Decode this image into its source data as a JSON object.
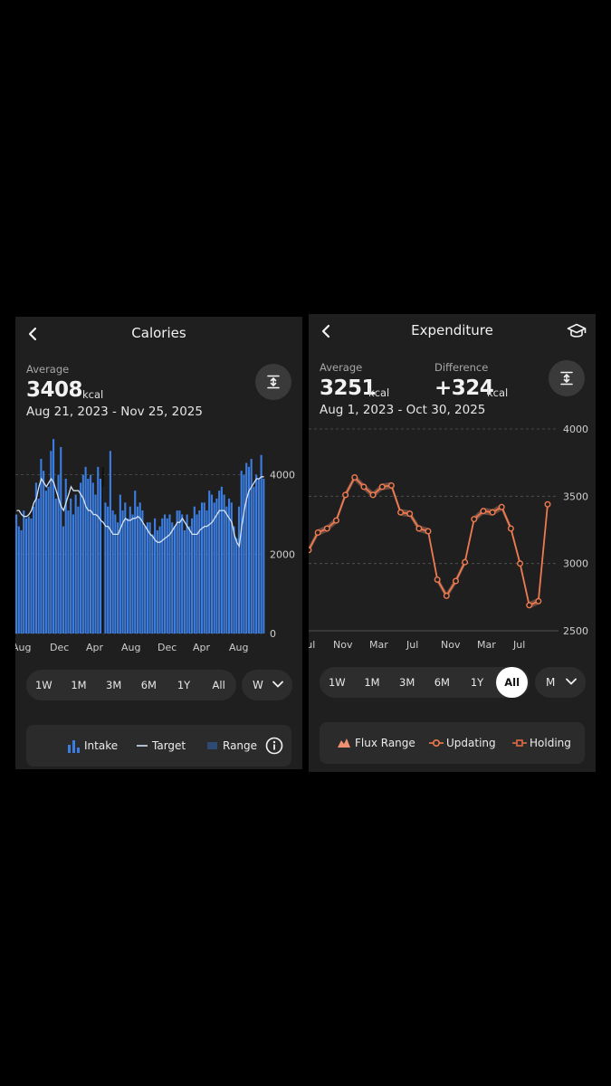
{
  "calories": {
    "title": "Calories",
    "average_label": "Average",
    "average_value": "3408",
    "unit": "kcal",
    "date_range": "Aug 21, 2023 - Nov 25, 2025",
    "ranges": [
      "1W",
      "1M",
      "3M",
      "6M",
      "1Y",
      "All"
    ],
    "dropdown_value": "W",
    "legend": {
      "intake": "Intake",
      "target": "Target",
      "range": "Range"
    },
    "icons": {
      "back": "back-arrow-icon",
      "expand": "expand-icon",
      "info": "info-icon"
    },
    "colors": {
      "bar": "#3b7de0",
      "target_line": "#d4e2f5",
      "range_dark": "#2d4a72"
    }
  },
  "expenditure": {
    "title": "Expenditure",
    "average_label": "Average",
    "average_value": "3251",
    "unit": "kcal",
    "difference_label": "Difference",
    "difference_value": "+324",
    "difference_unit": "kcal",
    "date_range": "Aug 1, 2023 - Oct 30, 2025",
    "ranges": [
      "1W",
      "1M",
      "3M",
      "6M",
      "1Y",
      "All"
    ],
    "active_range": "All",
    "dropdown_value": "M",
    "legend": {
      "flux": "Flux Range",
      "updating": "Updating",
      "holding": "Holding"
    },
    "icons": {
      "back": "back-arrow-icon",
      "cap": "graduation-cap-icon",
      "expand": "expand-icon"
    },
    "colors": {
      "line": "#f07a50",
      "band": "#7a5548",
      "marker_fill": "#1f1f1f"
    }
  },
  "chart_data": [
    {
      "type": "bar",
      "x_tick_labels": [
        "Aug",
        "Dec",
        "Apr",
        "Aug",
        "Dec",
        "Apr",
        "Aug"
      ],
      "y_ticks": [
        0,
        2000,
        4000
      ],
      "ylim": [
        0,
        5200
      ],
      "grid": "dashed horizontal",
      "series": [
        {
          "name": "Intake",
          "values": [
            3000,
            2700,
            2600,
            3100,
            2900,
            2950,
            2900,
            3200,
            3800,
            3400,
            4400,
            4100,
            3600,
            3700,
            4600,
            4900,
            3400,
            4000,
            4700,
            2700,
            3900,
            3100,
            3400,
            3000,
            3500,
            3200,
            3800,
            4000,
            4200,
            3900,
            4000,
            3800,
            3500,
            4200,
            3900,
            3700,
            3300,
            3200,
            4600,
            3100,
            3000,
            2800,
            3500,
            3100,
            3300,
            2900,
            3200,
            3000,
            3600,
            3200,
            3300,
            3100,
            2700,
            2800,
            2800,
            2500,
            2900,
            2600,
            2700,
            2900,
            3000,
            2900,
            3000,
            2800,
            2700,
            3100,
            3100,
            3000,
            2600,
            3000,
            2700,
            2900,
            3200,
            3000,
            3100,
            3300,
            3300,
            3100,
            3600,
            3500,
            3300,
            3400,
            3600,
            3700,
            3500,
            3200,
            3400,
            3300,
            2700,
            2400,
            3200,
            4100,
            4000,
            4300,
            4200,
            4400,
            3700,
            4000,
            3900,
            4500,
            3900
          ]
        },
        {
          "name": "Target",
          "values": [
            3100,
            3100,
            3000,
            2950,
            2950,
            3000,
            3100,
            3300,
            3400,
            3700,
            3900,
            3800,
            3700,
            3800,
            3900,
            3800,
            3600,
            3400,
            3200,
            3100,
            3300,
            3500,
            3700,
            3600,
            3600,
            3600,
            3500,
            3400,
            3200,
            3100,
            3100,
            3000,
            3000,
            2950,
            2850,
            2800,
            2700,
            2700,
            2600,
            2500,
            2500,
            2500,
            2650,
            2800,
            2900,
            2850,
            2850,
            2900,
            2900,
            2950,
            2900,
            2800,
            2700,
            2600,
            2500,
            2450,
            2350,
            2300,
            2300,
            2350,
            2400,
            2450,
            2500,
            2600,
            2700,
            2800,
            2800,
            2900,
            2800,
            2700,
            2600,
            2500,
            2500,
            2500,
            2600,
            2650,
            2700,
            2700,
            2750,
            2800,
            2900,
            3000,
            3100,
            3100,
            3100,
            3000,
            2900,
            2800,
            2500,
            2300,
            2200,
            2700,
            3100,
            3400,
            3600,
            3700,
            3800,
            3900,
            3900,
            3950,
            3950
          ]
        }
      ]
    },
    {
      "type": "line",
      "x_tick_labels": [
        "Jul",
        "Nov",
        "Mar",
        "Jul",
        "Nov",
        "Mar",
        "Jul"
      ],
      "y_ticks": [
        2500,
        3000,
        3500,
        4000
      ],
      "ylim": [
        2500,
        4000
      ],
      "grid": "dashed horizontal",
      "series": [
        {
          "name": "Updating",
          "values": [
            3100,
            3230,
            3260,
            3320,
            3510,
            3640,
            3570,
            3510,
            3570,
            3580,
            3380,
            3370,
            3260,
            3240,
            2880,
            2760,
            2870,
            3010,
            3330,
            3390,
            3380,
            3420,
            3260,
            3000,
            2690,
            2720,
            3440
          ]
        }
      ]
    }
  ]
}
